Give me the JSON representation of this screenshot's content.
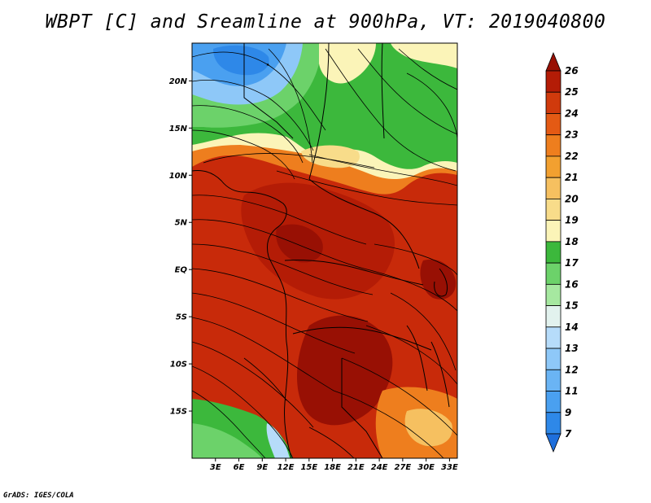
{
  "title": "WBPT [C] and Sreamline at 900hPa, VT: 2019040800",
  "credit": "GrADS: IGES/COLA",
  "map": {
    "lon_range": [
      0,
      34
    ],
    "lat_range": [
      -20,
      24
    ],
    "lat_ticks": [
      {
        "value": 20,
        "label": "20N"
      },
      {
        "value": 15,
        "label": "15N"
      },
      {
        "value": 10,
        "label": "10N"
      },
      {
        "value": 5,
        "label": "5N"
      },
      {
        "value": 0,
        "label": "EQ"
      },
      {
        "value": -5,
        "label": "5S"
      },
      {
        "value": -10,
        "label": "10S"
      },
      {
        "value": -15,
        "label": "15S"
      }
    ],
    "lon_ticks": [
      {
        "value": 3,
        "label": "3E"
      },
      {
        "value": 6,
        "label": "6E"
      },
      {
        "value": 9,
        "label": "9E"
      },
      {
        "value": 12,
        "label": "12E"
      },
      {
        "value": 15,
        "label": "15E"
      },
      {
        "value": 18,
        "label": "18E"
      },
      {
        "value": 21,
        "label": "21E"
      },
      {
        "value": 24,
        "label": "24E"
      },
      {
        "value": 27,
        "label": "27E"
      },
      {
        "value": 30,
        "label": "30E"
      },
      {
        "value": 33,
        "label": "33E"
      }
    ]
  },
  "colorbar": {
    "levels": [
      "7",
      "9",
      "11",
      "12",
      "13",
      "14",
      "15",
      "16",
      "17",
      "18",
      "19",
      "20",
      "21",
      "22",
      "23",
      "24",
      "25",
      "26"
    ],
    "colors": [
      "#1e6fdc",
      "#2e88e8",
      "#4aa0f0",
      "#6ab4f4",
      "#8ec8f8",
      "#b6dcfa",
      "#e2f2ee",
      "#a6e8a0",
      "#6cd26a",
      "#3cb83c",
      "#fbf4b8",
      "#f8dc8a",
      "#f6c060",
      "#f2a030",
      "#ee7e1e",
      "#e45a14",
      "#d03a0c",
      "#b41c06",
      "#981004"
    ]
  }
}
